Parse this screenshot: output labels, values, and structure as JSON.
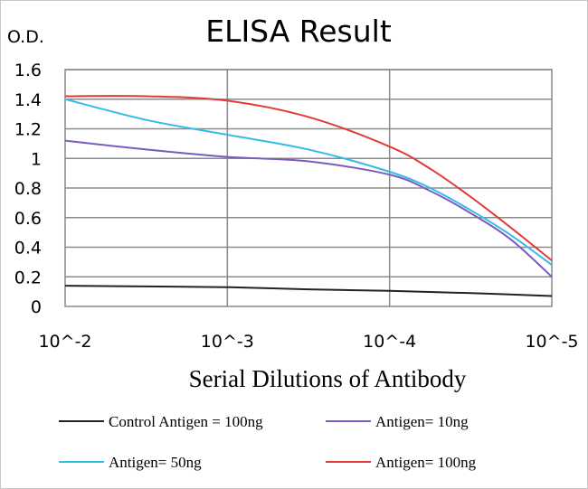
{
  "chart_data": {
    "type": "line",
    "title": "ELISA Result",
    "ylabel": "O.D.",
    "xlabel": "Serial Dilutions of Antibody",
    "categories": [
      "10^-2",
      "10^-3",
      "10^-4",
      "10^-5"
    ],
    "ylim": [
      0,
      1.6
    ],
    "yticks": [
      "0",
      "0.2",
      "0.4",
      "0.6",
      "0.8",
      "1",
      "1.2",
      "1.4",
      "1.6"
    ],
    "grid": true,
    "legend_position": "bottom",
    "series": [
      {
        "name": "Control Antigen = 100ng",
        "color": "#222222",
        "x": [
          0,
          0.5,
          1,
          1.5,
          2,
          2.5,
          3
        ],
        "values": [
          0.14,
          0.135,
          0.13,
          0.115,
          0.105,
          0.09,
          0.07
        ]
      },
      {
        "name": "Antigen= 10ng",
        "color": "#7b5bbf",
        "x": [
          0,
          0.5,
          1,
          1.5,
          2,
          2.25,
          2.5,
          2.75,
          3
        ],
        "values": [
          1.12,
          1.06,
          1.01,
          0.98,
          0.89,
          0.78,
          0.63,
          0.45,
          0.2
        ]
      },
      {
        "name": "Antigen= 50ng",
        "color": "#33bde6",
        "x": [
          0,
          0.5,
          1,
          1.5,
          2,
          2.25,
          2.5,
          2.75,
          3
        ],
        "values": [
          1.4,
          1.26,
          1.16,
          1.06,
          0.91,
          0.8,
          0.65,
          0.48,
          0.28
        ]
      },
      {
        "name": "Antigen= 100ng",
        "color": "#e23b35",
        "x": [
          0,
          0.5,
          1,
          1.5,
          2,
          2.25,
          2.5,
          2.75,
          3
        ],
        "values": [
          1.42,
          1.42,
          1.39,
          1.28,
          1.08,
          0.93,
          0.74,
          0.53,
          0.31
        ]
      }
    ]
  }
}
